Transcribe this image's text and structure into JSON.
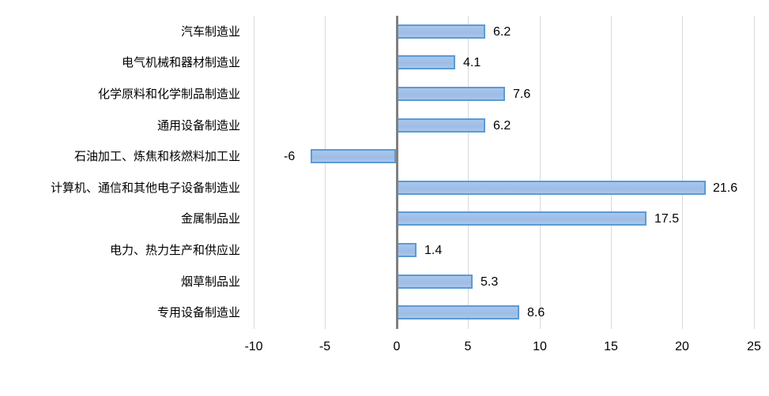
{
  "chart_data": {
    "type": "bar",
    "orientation": "horizontal",
    "title": "",
    "xlabel": "",
    "ylabel": "",
    "xlim": [
      -10,
      25
    ],
    "xticks": [
      -10,
      -5,
      0,
      5,
      10,
      15,
      20,
      25
    ],
    "xtick_labels": [
      "-10",
      "-5",
      "0",
      "5",
      "10",
      "15",
      "20",
      "25"
    ],
    "grid": true,
    "legend": null,
    "categories": [
      "汽车制造业",
      "电气机械和器材制造业",
      "化学原料和化学制品制造业",
      "通用设备制造业",
      "石油加工、炼焦和核燃料加工业",
      "计算机、通信和其他电子设备制造业",
      "金属制品业",
      "电力、热力生产和供应业",
      "烟草制品业",
      "专用设备制造业"
    ],
    "values": [
      6.2,
      4.1,
      7.6,
      6.2,
      -6,
      21.6,
      17.5,
      1.4,
      5.3,
      8.6
    ],
    "value_labels": [
      "6.2",
      "4.1",
      "7.6",
      "6.2",
      "-6",
      "21.6",
      "17.5",
      "1.4",
      "5.3",
      "8.6"
    ],
    "colors": {
      "bar_fill": "#a9c6ec",
      "bar_border": "#5b9bd5",
      "grid": "#d9d9d9",
      "zero_axis": "#808080"
    }
  }
}
